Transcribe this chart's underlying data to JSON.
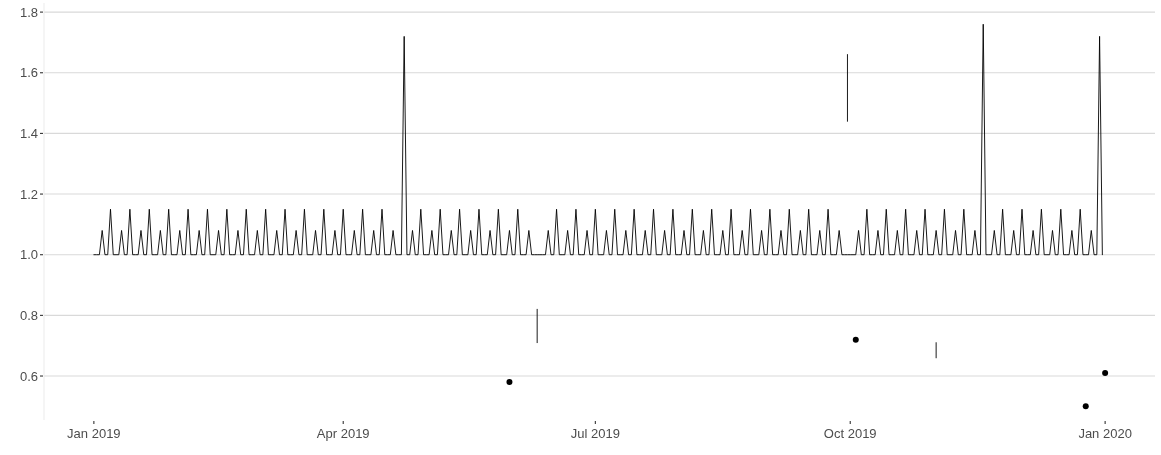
{
  "chart_data": {
    "type": "line",
    "xlim": [
      "2018-12-14",
      "2020-01-19"
    ],
    "ylim": [
      0.455,
      1.83
    ],
    "xticks": [
      {
        "value": "2019-01-01",
        "label": "Jan 2019"
      },
      {
        "value": "2019-04-01",
        "label": "Apr 2019"
      },
      {
        "value": "2019-07-01",
        "label": "Jul 2019"
      },
      {
        "value": "2019-10-01",
        "label": "Oct 2019"
      },
      {
        "value": "2020-01-01",
        "label": "Jan 2020"
      }
    ],
    "yticks": [
      0.6,
      0.8,
      {
        "value": 1,
        "label": "1.0"
      },
      1.2,
      1.4,
      1.6,
      1.8
    ],
    "grid": "y",
    "series": [
      {
        "color": "#000000",
        "x": [
          "2019-01-01",
          "2019-01-02",
          "2019-01-03",
          "2019-01-04",
          "2019-01-05",
          "2019-01-06",
          "2019-01-07",
          "2019-01-08",
          "2019-01-09",
          "2019-01-10",
          "2019-01-11",
          "2019-01-12",
          "2019-01-13",
          "2019-01-14",
          "2019-01-15",
          "2019-01-16",
          "2019-01-17",
          "2019-01-18",
          "2019-01-19",
          "2019-01-20",
          "2019-01-21",
          "2019-01-22",
          "2019-01-23",
          "2019-01-24",
          "2019-01-25",
          "2019-01-26",
          "2019-01-27",
          "2019-01-28",
          "2019-01-29",
          "2019-01-30",
          "2019-01-31",
          "2019-02-01",
          "2019-02-02",
          "2019-02-03",
          "2019-02-04",
          "2019-02-05",
          "2019-02-06",
          "2019-02-07",
          "2019-02-08",
          "2019-02-09",
          "2019-02-10",
          "2019-02-11",
          "2019-02-12",
          "2019-02-13",
          "2019-02-14",
          "2019-02-15",
          "2019-02-16",
          "2019-02-17",
          "2019-02-18",
          "2019-02-19",
          "2019-02-20",
          "2019-02-21",
          "2019-02-22",
          "2019-02-23",
          "2019-02-24",
          "2019-02-25",
          "2019-02-26",
          "2019-02-27",
          "2019-02-28",
          "2019-03-01",
          "2019-03-02",
          "2019-03-03",
          "2019-03-04",
          "2019-03-05",
          "2019-03-06",
          "2019-03-07",
          "2019-03-08",
          "2019-03-09",
          "2019-03-10",
          "2019-03-11",
          "2019-03-12",
          "2019-03-13",
          "2019-03-14",
          "2019-03-15",
          "2019-03-16",
          "2019-03-17",
          "2019-03-18",
          "2019-03-19",
          "2019-03-20",
          "2019-03-21",
          "2019-03-22",
          "2019-03-23",
          "2019-03-24",
          "2019-03-25",
          "2019-03-26",
          "2019-03-27",
          "2019-03-28",
          "2019-03-29",
          "2019-03-30",
          "2019-03-31",
          "2019-04-01",
          "2019-04-02",
          "2019-04-03",
          "2019-04-04",
          "2019-04-05",
          "2019-04-06",
          "2019-04-07",
          "2019-04-08",
          "2019-04-09",
          "2019-04-10",
          "2019-04-11",
          "2019-04-12",
          "2019-04-13",
          "2019-04-14",
          "2019-04-15",
          "2019-04-16",
          "2019-04-17",
          "2019-04-18",
          "2019-04-19",
          "2019-04-20",
          "2019-04-21",
          "2019-04-22",
          "2019-04-23",
          "2019-04-24",
          "2019-04-25",
          "2019-04-26",
          "2019-04-27",
          "2019-04-28",
          "2019-04-29",
          "2019-04-30",
          "2019-05-01",
          "2019-05-02",
          "2019-05-03",
          "2019-05-04",
          "2019-05-05",
          "2019-05-06",
          "2019-05-07",
          "2019-05-08",
          "2019-05-09",
          "2019-05-10",
          "2019-05-11",
          "2019-05-12",
          "2019-05-13",
          "2019-05-14",
          "2019-05-15",
          "2019-05-16",
          "2019-05-17",
          "2019-05-18",
          "2019-05-19",
          "2019-05-20",
          "2019-05-21",
          "2019-05-22",
          "2019-05-23",
          "2019-05-24",
          "2019-05-25",
          "2019-05-26",
          "2019-05-27",
          "2019-05-28",
          "2019-05-29",
          "2019-05-30",
          "2019-05-31",
          "2019-06-01",
          "2019-06-02",
          "2019-06-03",
          "2019-06-04",
          "2019-06-05",
          "2019-06-06",
          "2019-06-07",
          "2019-06-08",
          "2019-06-09",
          "2019-06-10",
          "2019-06-11",
          "2019-06-12",
          "2019-06-13",
          "2019-06-14",
          "2019-06-15",
          "2019-06-16",
          "2019-06-17",
          "2019-06-18",
          "2019-06-19",
          "2019-06-20",
          "2019-06-21",
          "2019-06-22",
          "2019-06-23",
          "2019-06-24",
          "2019-06-25",
          "2019-06-26",
          "2019-06-27",
          "2019-06-28",
          "2019-06-29",
          "2019-06-30",
          "2019-07-01",
          "2019-07-02",
          "2019-07-03",
          "2019-07-04",
          "2019-07-05",
          "2019-07-06",
          "2019-07-07",
          "2019-07-08",
          "2019-07-09",
          "2019-07-10",
          "2019-07-11",
          "2019-07-12",
          "2019-07-13",
          "2019-07-14",
          "2019-07-15",
          "2019-07-16",
          "2019-07-17",
          "2019-07-18",
          "2019-07-19",
          "2019-07-20",
          "2019-07-21",
          "2019-07-22",
          "2019-07-23",
          "2019-07-24",
          "2019-07-25",
          "2019-07-26",
          "2019-07-27",
          "2019-07-28",
          "2019-07-29",
          "2019-07-30",
          "2019-07-31",
          "2019-08-01",
          "2019-08-02",
          "2019-08-03",
          "2019-08-04",
          "2019-08-05",
          "2019-08-06",
          "2019-08-07",
          "2019-08-08",
          "2019-08-09",
          "2019-08-10",
          "2019-08-11",
          "2019-08-12",
          "2019-08-13",
          "2019-08-14",
          "2019-08-15",
          "2019-08-16",
          "2019-08-17",
          "2019-08-18",
          "2019-08-19",
          "2019-08-20",
          "2019-08-21",
          "2019-08-22",
          "2019-08-23",
          "2019-08-24",
          "2019-08-25",
          "2019-08-26",
          "2019-08-27",
          "2019-08-28",
          "2019-08-29",
          "2019-08-30",
          "2019-08-31",
          "2019-09-01",
          "2019-09-02",
          "2019-09-03",
          "2019-09-04",
          "2019-09-05",
          "2019-09-06",
          "2019-09-07",
          "2019-09-08",
          "2019-09-09",
          "2019-09-10",
          "2019-09-11",
          "2019-09-12",
          "2019-09-13",
          "2019-09-14",
          "2019-09-15",
          "2019-09-16",
          "2019-09-17",
          "2019-09-18",
          "2019-09-19",
          "2019-09-20",
          "2019-09-21",
          "2019-09-22",
          "2019-09-23",
          "2019-09-24",
          "2019-09-25",
          "2019-09-26",
          "2019-09-27",
          "2019-09-28",
          "2019-09-29",
          "2019-09-30",
          "2019-10-01",
          "2019-10-02",
          "2019-10-03",
          "2019-10-04",
          "2019-10-05",
          "2019-10-06",
          "2019-10-07",
          "2019-10-08",
          "2019-10-09",
          "2019-10-10",
          "2019-10-11",
          "2019-10-12",
          "2019-10-13",
          "2019-10-14",
          "2019-10-15",
          "2019-10-16",
          "2019-10-17",
          "2019-10-18",
          "2019-10-19",
          "2019-10-20",
          "2019-10-21",
          "2019-10-22",
          "2019-10-23",
          "2019-10-24",
          "2019-10-25",
          "2019-10-26",
          "2019-10-27",
          "2019-10-28",
          "2019-10-29",
          "2019-10-30",
          "2019-10-31",
          "2019-11-01",
          "2019-11-02",
          "2019-11-03",
          "2019-11-04",
          "2019-11-05",
          "2019-11-06",
          "2019-11-07",
          "2019-11-08",
          "2019-11-09",
          "2019-11-10",
          "2019-11-11",
          "2019-11-12",
          "2019-11-13",
          "2019-11-14",
          "2019-11-15",
          "2019-11-16",
          "2019-11-17",
          "2019-11-18",
          "2019-11-19",
          "2019-11-20",
          "2019-11-21",
          "2019-11-22",
          "2019-11-23",
          "2019-11-24",
          "2019-11-25",
          "2019-11-26",
          "2019-11-27",
          "2019-11-28",
          "2019-11-29",
          "2019-11-30",
          "2019-12-01",
          "2019-12-02",
          "2019-12-03",
          "2019-12-04",
          "2019-12-05",
          "2019-12-06",
          "2019-12-07",
          "2019-12-08",
          "2019-12-09",
          "2019-12-10",
          "2019-12-11",
          "2019-12-12",
          "2019-12-13",
          "2019-12-14",
          "2019-12-15",
          "2019-12-16",
          "2019-12-17",
          "2019-12-18",
          "2019-12-19",
          "2019-12-20",
          "2019-12-21",
          "2019-12-22",
          "2019-12-23",
          "2019-12-24",
          "2019-12-25",
          "2019-12-26",
          "2019-12-27",
          "2019-12-28",
          "2019-12-29",
          "2019-12-30",
          "2019-12-31"
        ],
        "values": [
          1,
          1,
          1,
          1.08,
          1,
          1,
          1.15,
          1,
          1,
          1,
          1.08,
          1,
          1,
          1.15,
          1,
          1,
          1,
          1.08,
          1,
          1,
          1.15,
          1,
          1,
          1,
          1.08,
          1,
          1,
          1.15,
          1,
          1,
          1,
          1.08,
          1,
          1,
          1.15,
          1,
          1,
          1,
          1.08,
          1,
          1,
          1.15,
          1,
          1,
          1,
          1.08,
          1,
          1,
          1.15,
          1,
          1,
          1,
          1.08,
          1,
          1,
          1.15,
          1,
          1,
          1,
          1.08,
          1,
          1,
          1.15,
          1,
          1,
          1,
          1.08,
          1,
          1,
          1.15,
          1,
          1,
          1,
          1.08,
          1,
          1,
          1.15,
          1,
          1,
          1,
          1.08,
          1,
          1,
          1.15,
          1,
          1,
          1,
          1.08,
          1,
          1,
          1.15,
          1,
          1,
          1,
          1.08,
          1,
          1,
          1.15,
          1,
          1,
          1,
          1.08,
          1,
          1,
          1.15,
          1,
          1,
          1,
          1.08,
          1,
          1,
          1,
          1.72,
          1,
          1,
          1.08,
          1,
          1,
          1.15,
          1,
          1,
          1,
          1.08,
          1,
          1,
          1.15,
          1,
          1,
          1,
          1.08,
          1,
          1,
          1.15,
          1,
          1,
          1,
          1.08,
          1,
          1,
          1.15,
          1,
          1,
          1,
          1.08,
          1,
          1,
          1.15,
          1,
          1,
          1,
          1.08,
          1,
          1,
          1.15,
          1,
          1,
          1,
          1.08,
          1,
          1,
          1,
          1,
          1,
          1,
          1.08,
          1,
          1,
          1.15,
          1,
          1,
          1,
          1.08,
          1,
          1,
          1.15,
          1,
          1,
          1,
          1.08,
          1,
          1,
          1.15,
          1,
          1,
          1,
          1.08,
          1,
          1,
          1.15,
          1,
          1,
          1,
          1.08,
          1,
          1,
          1.15,
          1,
          1,
          1,
          1.08,
          1,
          1,
          1.15,
          1,
          1,
          1,
          1.08,
          1,
          1,
          1.15,
          1,
          1,
          1,
          1.08,
          1,
          1,
          1.15,
          1,
          1,
          1,
          1.08,
          1,
          1,
          1.15,
          1,
          1,
          1,
          1.08,
          1,
          1,
          1.15,
          1,
          1,
          1,
          1.08,
          1,
          1,
          1.15,
          1,
          1,
          1,
          1.08,
          1,
          1,
          1.15,
          1,
          1,
          1,
          1.08,
          1,
          1,
          1.15,
          1,
          1,
          1,
          1.08,
          1,
          1,
          1.15,
          1,
          1,
          1,
          1.08,
          1,
          1,
          1.15,
          1,
          1,
          1,
          1.08,
          1,
          1,
          1,
          1,
          1,
          1,
          1.08,
          1,
          1,
          1.15,
          1,
          1,
          1,
          1.08,
          1,
          1,
          1.15,
          1,
          1,
          1,
          1.08,
          1,
          1,
          1.15,
          1,
          1,
          1,
          1.08,
          1,
          1,
          1.15,
          1,
          1,
          1,
          1.08,
          1,
          1,
          1.15,
          1,
          1,
          1,
          1.08,
          1,
          1,
          1.15,
          1,
          1,
          1,
          1.08,
          1,
          1,
          1.76,
          1,
          1,
          1,
          1.08,
          1,
          1,
          1.15,
          1,
          1,
          1,
          1.08,
          1,
          1,
          1.15,
          1,
          1,
          1,
          1.08,
          1,
          1,
          1.15,
          1,
          1,
          1,
          1.08,
          1,
          1,
          1.15,
          1,
          1,
          1,
          1.08,
          1,
          1,
          1.15,
          1,
          1,
          1,
          1.08,
          1,
          1,
          1.72,
          1
        ]
      },
      {
        "type": "scatter",
        "marker": "circle",
        "color": "#000000",
        "x": [
          "2019-05-31",
          "2019-10-03",
          "2019-12-25",
          "2020-01-01"
        ],
        "values": [
          0.58,
          0.72,
          0.5,
          0.61
        ]
      },
      {
        "color": "#000000",
        "x": [
          "2019-06-10",
          "2019-06-10"
        ],
        "values": [
          0.82,
          0.71
        ]
      },
      {
        "color": "#000000",
        "x": [
          "2019-09-30",
          "2019-09-30"
        ],
        "values": [
          1.66,
          1.44
        ]
      },
      {
        "color": "#000000",
        "x": [
          "2019-11-01",
          "2019-11-01"
        ],
        "values": [
          0.71,
          0.66
        ]
      }
    ]
  }
}
